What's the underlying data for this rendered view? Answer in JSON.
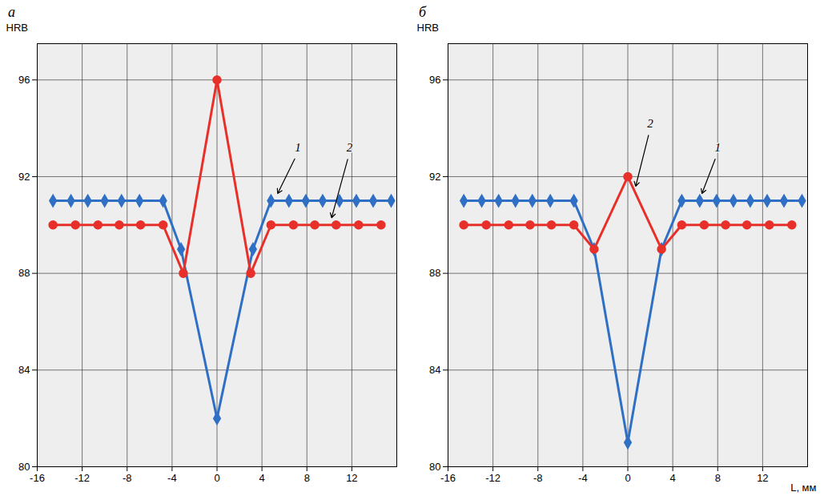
{
  "chart_data": [
    {
      "type": "line",
      "panel_label": "а",
      "y_label": "HRB",
      "x_label": null,
      "xlim": [
        -16,
        16
      ],
      "xticks": [
        -16,
        -12,
        -8,
        -4,
        0,
        4,
        8,
        12
      ],
      "ylim": [
        80,
        97.5
      ],
      "yticks": [
        80,
        84,
        88,
        92,
        96
      ],
      "grid": true,
      "series": [
        {
          "name": "1",
          "color": "#2f6fc4",
          "marker": "diamond",
          "x": [
            -14.6,
            -13,
            -11.5,
            -10,
            -8.5,
            -6.9,
            -4.8,
            -3.2,
            0,
            3.2,
            4.8,
            6.4,
            7.9,
            9.4,
            10.9,
            12.4,
            13.9,
            15.5
          ],
          "values": [
            91,
            91,
            91,
            91,
            91,
            91,
            91,
            89,
            82,
            89,
            91,
            91,
            91,
            91,
            91,
            91,
            91,
            91
          ]
        },
        {
          "name": "2",
          "color": "#e8302a",
          "marker": "circle",
          "x": [
            -14.6,
            -12.6,
            -10.6,
            -8.7,
            -6.8,
            -4.8,
            -3,
            0,
            3,
            4.8,
            6.8,
            8.7,
            10.6,
            12.6,
            14.6
          ],
          "values": [
            90,
            90,
            90,
            90,
            90,
            90,
            88,
            96,
            88,
            90,
            90,
            90,
            90,
            90,
            90
          ]
        }
      ]
    },
    {
      "type": "line",
      "panel_label": "б",
      "y_label": "HRB",
      "x_label": "L, мм",
      "xlim": [
        -16,
        16
      ],
      "xticks": [
        -16,
        -12,
        -8,
        -4,
        0,
        4,
        8,
        12
      ],
      "ylim": [
        80,
        97.5
      ],
      "yticks": [
        80,
        84,
        88,
        92,
        96
      ],
      "grid": true,
      "series": [
        {
          "name": "1",
          "color": "#2f6fc4",
          "marker": "diamond",
          "x": [
            -14.6,
            -13,
            -11.5,
            -10,
            -8.5,
            -6.9,
            -4.8,
            -3,
            0,
            3,
            4.8,
            6.4,
            7.9,
            9.4,
            10.9,
            12.4,
            13.9,
            15.5
          ],
          "values": [
            91,
            91,
            91,
            91,
            91,
            91,
            91,
            89,
            81,
            89,
            91,
            91,
            91,
            91,
            91,
            91,
            91,
            91
          ]
        },
        {
          "name": "2",
          "color": "#e8302a",
          "marker": "circle",
          "x": [
            -14.6,
            -12.6,
            -10.6,
            -8.7,
            -6.8,
            -4.8,
            -3,
            0,
            3,
            4.8,
            6.8,
            8.7,
            10.6,
            12.6,
            14.6
          ],
          "values": [
            90,
            90,
            90,
            90,
            90,
            90,
            89,
            92,
            89,
            90,
            90,
            90,
            90,
            90,
            90
          ]
        }
      ]
    }
  ]
}
